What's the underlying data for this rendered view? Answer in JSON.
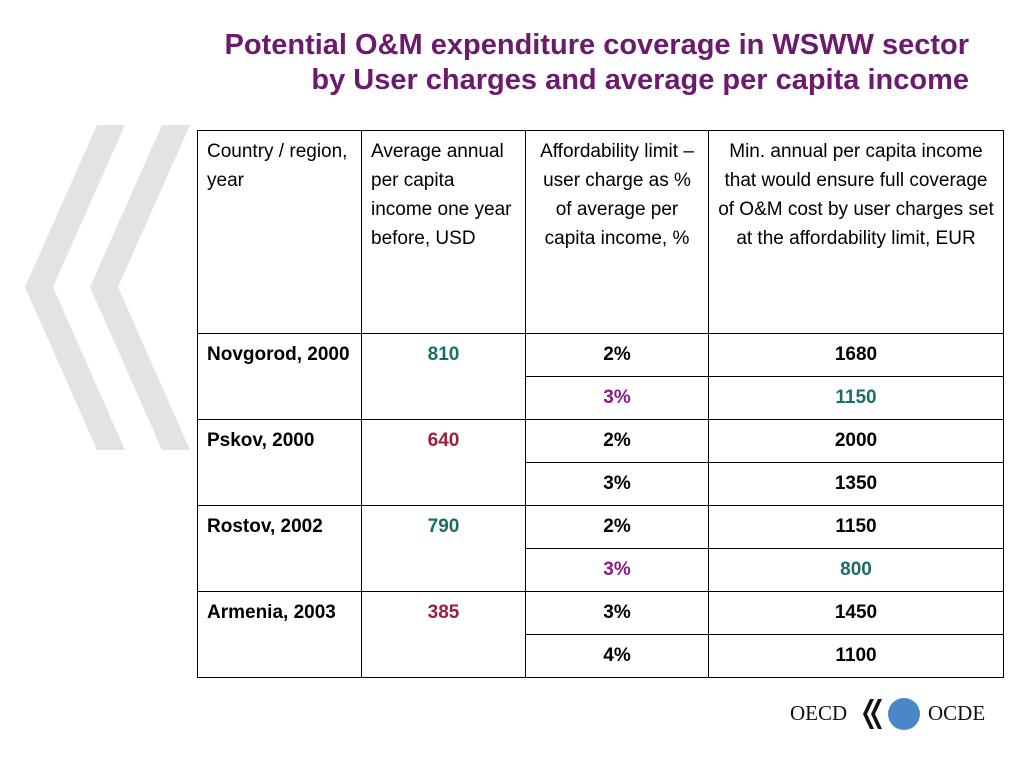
{
  "title": {
    "line1": "Potential O&M expenditure coverage in WSWW sector",
    "line2": "by User charges and average per capita income"
  },
  "colors": {
    "title": "#6b1a6d",
    "green": "#1a6e63",
    "red": "#9c1f3c",
    "purple": "#8a1a8c",
    "deco": "#e3e3e3",
    "logo_circle": "#4a87c8"
  },
  "table": {
    "headers": {
      "country": "Country / region, year",
      "income": "Average annual per capita income one year before, USD",
      "limit": "Affordability limit – user charge as % of average per capita income, %",
      "min_income": "Min. annual per capita income that would ensure full coverage of O&M cost by user charges set at the affordability limit, EUR"
    },
    "rows": [
      {
        "country": "Novgorod, 2000",
        "income": "810",
        "income_color": "green",
        "sub": [
          {
            "limit": "2%",
            "limit_color": "black",
            "min": "1680",
            "min_color": "black"
          },
          {
            "limit": "3%",
            "limit_color": "purple",
            "min": "1150",
            "min_color": "green"
          }
        ]
      },
      {
        "country": "Pskov, 2000",
        "income": "640",
        "income_color": "red",
        "sub": [
          {
            "limit": "2%",
            "limit_color": "black",
            "min": "2000",
            "min_color": "black"
          },
          {
            "limit": "3%",
            "limit_color": "black",
            "min": "1350",
            "min_color": "black"
          }
        ]
      },
      {
        "country": "Rostov, 2002",
        "income": "790",
        "income_color": "green",
        "sub": [
          {
            "limit": "2%",
            "limit_color": "black",
            "min": "1150",
            "min_color": "black"
          },
          {
            "limit": "3%",
            "limit_color": "purple",
            "min": "800",
            "min_color": "green"
          }
        ]
      },
      {
        "country": "Armenia, 2003",
        "income": "385",
        "income_color": "red",
        "sub": [
          {
            "limit": "3%",
            "limit_color": "black",
            "min": "1450",
            "min_color": "black"
          },
          {
            "limit": "4%",
            "limit_color": "black",
            "min": "1100",
            "min_color": "black"
          }
        ]
      }
    ]
  },
  "logo": {
    "left_text": "OECD",
    "right_text": "OCDE",
    "icon": "oecd-chevrons-globe-icon"
  },
  "decoration": {
    "icon": "large-double-chevron-icon"
  }
}
